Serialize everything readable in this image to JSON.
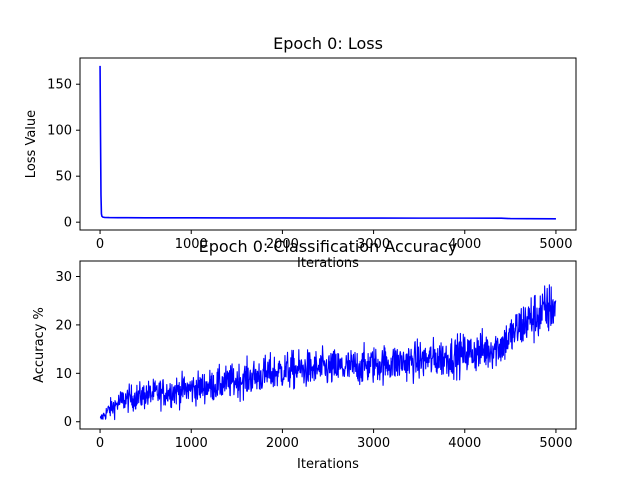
{
  "chart_data": [
    {
      "type": "line",
      "title": "Epoch 0: Loss",
      "xlabel": "Iterations",
      "ylabel": "Loss Value",
      "xlim": [
        -220,
        5220
      ],
      "ylim": [
        -8.5,
        178.5
      ],
      "xticks": [
        0,
        1000,
        2000,
        3000,
        4000,
        5000
      ],
      "yticks": [
        0,
        50,
        100,
        150
      ],
      "grid": false,
      "series": [
        {
          "color": "#0000ff",
          "x": [
            0,
            5,
            10,
            15,
            20,
            30,
            50,
            100,
            200,
            500,
            1000,
            1500,
            2000,
            2500,
            3000,
            3500,
            4000,
            4400,
            4500,
            4700,
            5000
          ],
          "y": [
            170,
            95,
            30,
            9,
            6.5,
            5.5,
            5.2,
            5.0,
            4.9,
            4.8,
            4.7,
            4.6,
            4.6,
            4.5,
            4.5,
            4.4,
            4.4,
            4.3,
            3.9,
            3.8,
            3.7
          ]
        }
      ]
    },
    {
      "type": "line",
      "title": "Epoch 0: Classification Accuracy",
      "xlabel": "Iterations",
      "ylabel": "Accuracy %",
      "xlim": [
        -220,
        5220
      ],
      "ylim": [
        -1.5,
        33.2
      ],
      "xticks": [
        0,
        1000,
        2000,
        3000,
        4000,
        5000
      ],
      "yticks": [
        0,
        10,
        20,
        30
      ],
      "grid": false,
      "series": [
        {
          "color": "#0000ff",
          "x": [
            0,
            100,
            250,
            500,
            750,
            1000,
            1250,
            1500,
            1750,
            2000,
            2250,
            2500,
            2750,
            3000,
            3250,
            3500,
            3750,
            4000,
            4250,
            4400,
            4500,
            4600,
            4700,
            4800,
            4900,
            5000
          ],
          "mean": [
            0.5,
            2.5,
            4.5,
            5.5,
            6.2,
            6.8,
            7.5,
            8.5,
            9.5,
            10.5,
            10.8,
            11.0,
            11.2,
            11.8,
            12.2,
            12.6,
            13.2,
            14.0,
            14.8,
            15.8,
            17.5,
            19.5,
            21.0,
            22.0,
            23.0,
            24.0
          ],
          "spread": [
            1.2,
            3.0,
            4.0,
            4.5,
            4.8,
            5.0,
            5.2,
            5.5,
            5.8,
            6.0,
            6.0,
            6.0,
            6.0,
            6.0,
            6.0,
            6.2,
            6.3,
            6.5,
            6.5,
            6.5,
            6.8,
            7.5,
            8.0,
            8.5,
            8.5,
            8.0
          ]
        }
      ]
    }
  ]
}
